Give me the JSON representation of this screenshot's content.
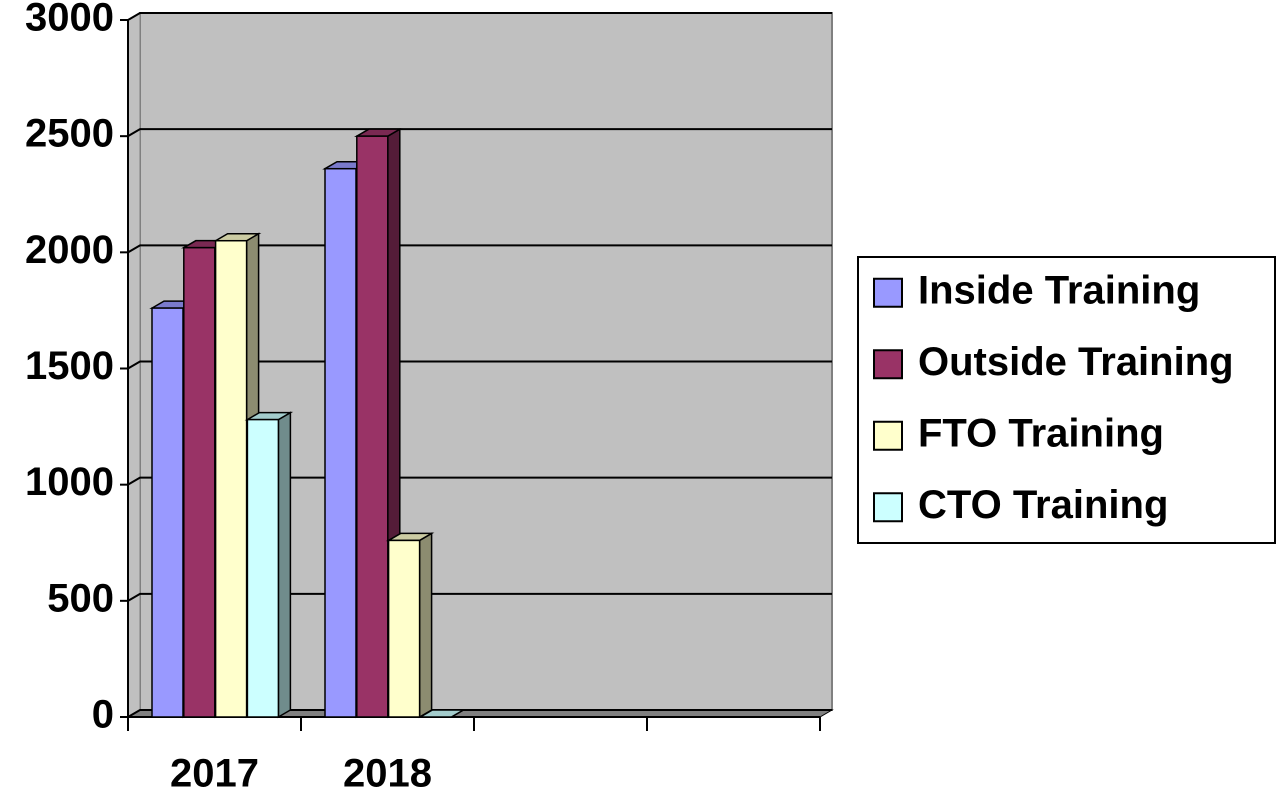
{
  "chart_data": {
    "type": "bar",
    "categories": [
      "2017",
      "2018",
      null,
      null
    ],
    "series": [
      {
        "name": "Inside Training",
        "color": "#9999ff",
        "values": [
          1760,
          2360,
          null,
          null
        ]
      },
      {
        "name": "Outside Training",
        "color": "#993366",
        "values": [
          2020,
          2500,
          null,
          null
        ]
      },
      {
        "name": "FTO Training",
        "color": "#ffffcc",
        "values": [
          2050,
          760,
          null,
          null
        ]
      },
      {
        "name": "CTO Training",
        "color": "#ccffff",
        "values": [
          1280,
          0,
          null,
          null
        ]
      }
    ],
    "ylim": [
      0,
      3000
    ],
    "yticks": [
      0,
      500,
      1000,
      1500,
      2000,
      2500,
      3000
    ],
    "grid": true,
    "legend": "right"
  }
}
